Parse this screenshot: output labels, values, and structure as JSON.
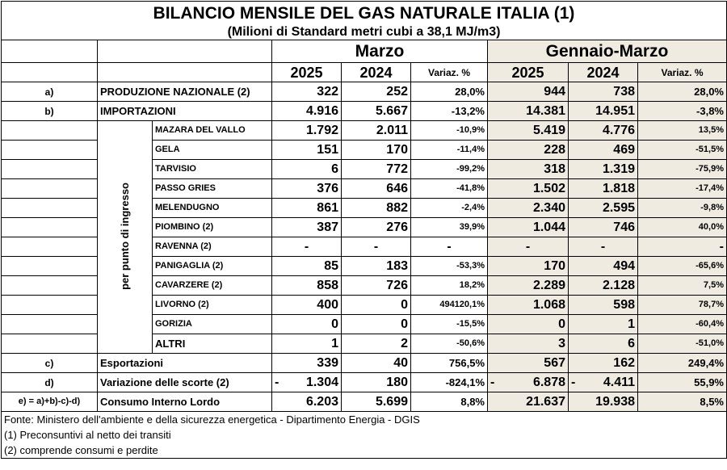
{
  "title": "BILANCIO MENSILE DEL GAS NATURALE ITALIA (1)",
  "subtitle": "(Milioni di Standard metri cubi a 38,1 MJ/m3)",
  "periods": {
    "month": "Marzo",
    "cumulative": "Gennaio-Marzo"
  },
  "years": {
    "current": "2025",
    "previous": "2024"
  },
  "variation_label": "Variaz. %",
  "vertical_label": "per punto di ingresso",
  "rows": {
    "produzione": {
      "code": "a)",
      "label": "PRODUZIONE NAZIONALE (2)",
      "m25": "322",
      "m24": "252",
      "mvar": "28,0%",
      "c25": "944",
      "c24": "738",
      "cvar": "28,0%"
    },
    "importazioni": {
      "code": "b)",
      "label": "IMPORTAZIONI",
      "m25": "4.916",
      "m24": "5.667",
      "mvar": "-13,2%",
      "c25": "14.381",
      "c24": "14.951",
      "cvar": "-3,8%"
    },
    "esportazioni": {
      "code": "c)",
      "label": "Esportazioni",
      "m25": "339",
      "m24": "40",
      "mvar": "756,5%",
      "c25": "567",
      "c24": "162",
      "cvar": "249,4%"
    },
    "scorte": {
      "code": "d)",
      "label": "Variazione delle scorte (2)",
      "sign": "-",
      "m25": "1.304",
      "m24": "180",
      "mvar": "-824,1%",
      "c25sign": "-",
      "c25": "6.878",
      "c24sign": "-",
      "c24": "4.411",
      "cvar": "55,9%"
    },
    "consumo": {
      "code": "e) = a)+b)-c)-d)",
      "label": "Consumo Interno Lordo",
      "m25": "6.203",
      "m24": "5.699",
      "mvar": "8,8%",
      "c25": "21.637",
      "c24": "19.938",
      "cvar": "8,5%"
    }
  },
  "entry_points": [
    {
      "name": "MAZARA DEL VALLO",
      "m25": "1.792",
      "m24": "2.011",
      "mvar": "-10,9%",
      "c25": "5.419",
      "c24": "4.776",
      "cvar": "13,5%"
    },
    {
      "name": "GELA",
      "m25": "151",
      "m24": "170",
      "mvar": "-11,4%",
      "c25": "228",
      "c24": "469",
      "cvar": "-51,5%"
    },
    {
      "name": "TARVISIO",
      "m25": "6",
      "m24": "772",
      "mvar": "-99,2%",
      "c25": "318",
      "c24": "1.319",
      "cvar": "-75,9%"
    },
    {
      "name": "PASSO GRIES",
      "m25": "376",
      "m24": "646",
      "mvar": "-41,8%",
      "c25": "1.502",
      "c24": "1.818",
      "cvar": "-17,4%"
    },
    {
      "name": "MELENDUGNO",
      "m25": "861",
      "m24": "882",
      "mvar": "-2,4%",
      "c25": "2.340",
      "c24": "2.595",
      "cvar": "-9,8%"
    },
    {
      "name": "PIOMBINO (2)",
      "m25": "387",
      "m24": "276",
      "mvar": "39,9%",
      "c25": "1.044",
      "c24": "746",
      "cvar": "40,0%"
    },
    {
      "name": "RAVENNA (2)",
      "m25": "-",
      "m24": "-",
      "mvar": "-",
      "c25": "-",
      "c24": "-",
      "cvar": "-"
    },
    {
      "name": "PANIGAGLIA (2)",
      "m25": "85",
      "m24": "183",
      "mvar": "-53,3%",
      "c25": "170",
      "c24": "494",
      "cvar": "-65,6%"
    },
    {
      "name": "CAVARZERE (2)",
      "m25": "858",
      "m24": "726",
      "mvar": "18,2%",
      "c25": "2.289",
      "c24": "2.128",
      "cvar": "7,5%"
    },
    {
      "name": "LIVORNO (2)",
      "m25": "400",
      "m24": "0",
      "mvar": "494120,1%",
      "c25": "1.068",
      "c24": "598",
      "cvar": "78,7%"
    },
    {
      "name": "GORIZIA",
      "m25": "0",
      "m24": "0",
      "mvar": "-15,5%",
      "c25": "0",
      "c24": "1",
      "cvar": "-60,4%"
    },
    {
      "name": "ALTRI",
      "m25": "1",
      "m24": "2",
      "mvar": "-50,6%",
      "c25": "3",
      "c24": "6",
      "cvar": "-51,0%"
    }
  ],
  "footnotes": [
    "Fonte: Ministero dell'ambiente e della sicurezza energetica - Dipartimento Energia - DGIS",
    "(1) Preconsuntivi al netto dei transiti",
    "(2) comprende consumi e perdite"
  ]
}
